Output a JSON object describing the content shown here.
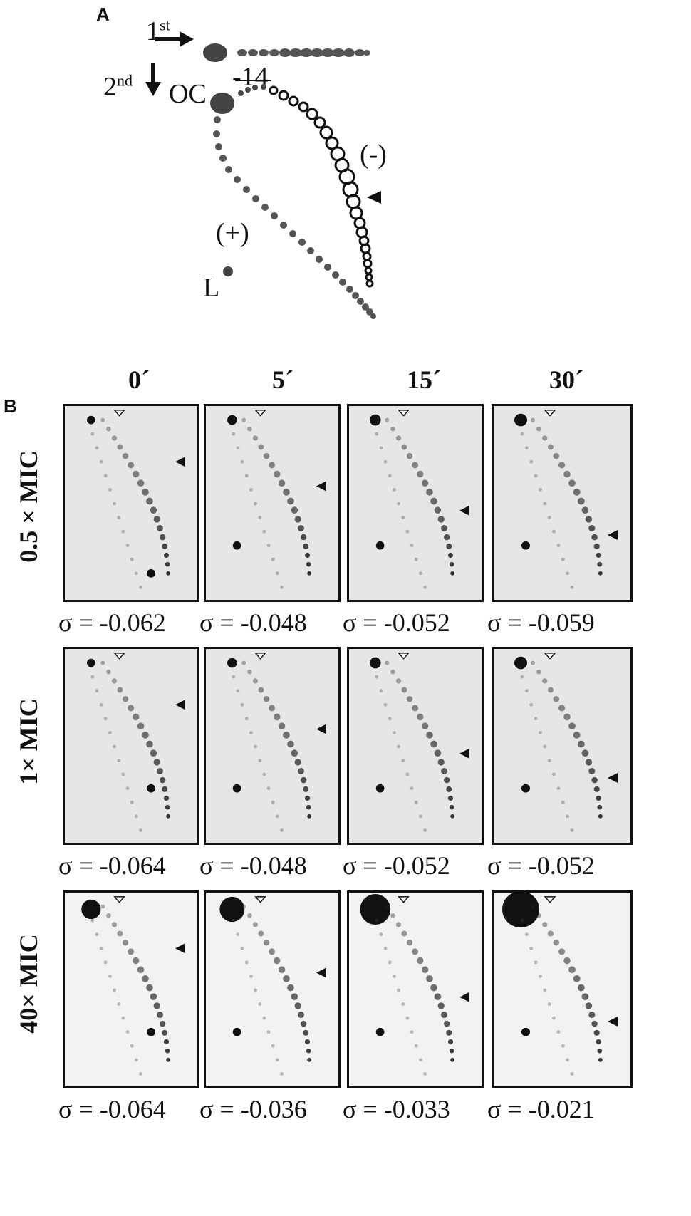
{
  "panel_a": {
    "letter": "A",
    "first_label": "1",
    "first_sup": "st",
    "second_label": "2",
    "second_sup": "nd",
    "oc_label": "OC",
    "minus14_label": "-14",
    "neg_label": "(-)",
    "pos_label": "(+)",
    "l_label": "L"
  },
  "panel_b": {
    "letter": "B",
    "time_labels": [
      "0´",
      "5´",
      "15´",
      "30´"
    ],
    "rows": [
      {
        "label": "0.5 × MIC",
        "sigmas": [
          "σ = -0.062",
          "σ = -0.048",
          "σ = -0.052",
          "σ = -0.059"
        ]
      },
      {
        "label": "1× MIC",
        "sigmas": [
          "σ = -0.064",
          "σ = -0.048",
          "σ = -0.052",
          "σ = -0.052"
        ]
      },
      {
        "label": "40× MIC",
        "sigmas": [
          "σ = -0.064",
          "σ = -0.036",
          "σ = -0.033",
          "σ = -0.021"
        ]
      }
    ]
  }
}
